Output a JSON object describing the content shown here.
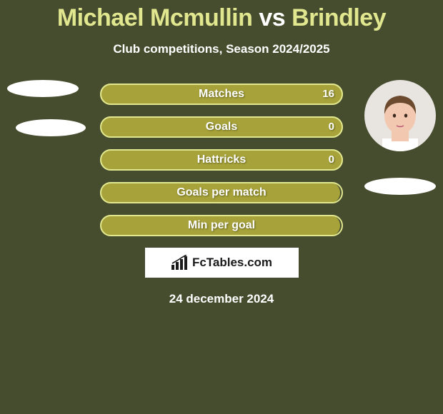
{
  "title": {
    "player1": "Michael Mcmullin",
    "vs": "vs",
    "player2": "Brindley"
  },
  "subtitle": "Club competitions, Season 2024/2025",
  "colors": {
    "background": "#464c2e",
    "accent": "#e0e78f",
    "bar_fill": "#a7a33a",
    "bar_border": "#e0e78f",
    "text": "#ffffff",
    "ellipse": "#ffffff"
  },
  "typography": {
    "title_fontsize": 34,
    "subtitle_fontsize": 17,
    "bar_label_fontsize": 16,
    "date_fontsize": 17
  },
  "bar_chart": {
    "type": "bar",
    "track_width": 340,
    "track_height": 30,
    "border_radius": 15,
    "row_gap": 16,
    "rows": [
      {
        "label": "Matches",
        "value": "16",
        "fill_width": 340
      },
      {
        "label": "Goals",
        "value": "0",
        "fill_width": 340
      },
      {
        "label": "Hattricks",
        "value": "0",
        "fill_width": 340
      },
      {
        "label": "Goals per match",
        "value": "",
        "fill_width": 336
      },
      {
        "label": "Min per goal",
        "value": "",
        "fill_width": 336
      }
    ]
  },
  "avatars": {
    "left": {
      "has_photo": false,
      "shape_color": "#ffffff"
    },
    "right": {
      "has_photo": true,
      "skin": "#f2c9b0",
      "hair": "#6b4a2e",
      "shirt": "#ffffff"
    }
  },
  "logo": {
    "text": "FcTables.com"
  },
  "date": "24 december 2024"
}
